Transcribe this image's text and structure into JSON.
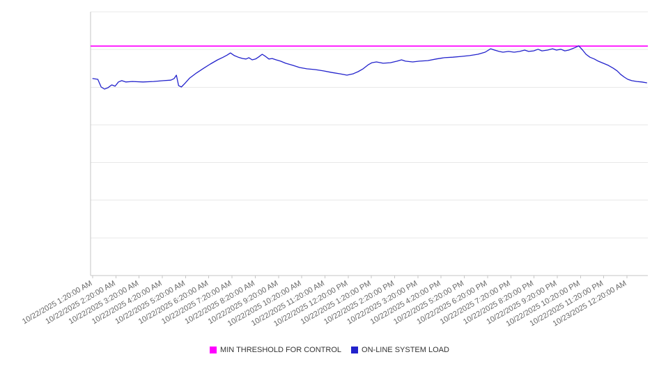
{
  "colors": {
    "threshold": "#ff00ff",
    "load_line": "#2222cc",
    "grid": "#e8e8e8",
    "axis": "#c6c6c6",
    "tick_label": "#666666",
    "legend_text": "#333333"
  },
  "chart_data": {
    "type": "line",
    "title": "",
    "xlabel": "",
    "ylabel": "",
    "grid": true,
    "legend_position": "bottom",
    "y_axis": {
      "labels_visible": false,
      "relative_scale": [
        0,
        100
      ],
      "gridline_divisions": 7
    },
    "x_tick_labels": [
      "10/22/2025 1:20:00 AM",
      "10/22/2025 2:20:00 AM",
      "10/22/2025 3:20:00 AM",
      "10/22/2025 4:20:00 AM",
      "10/22/2025 5:20:00 AM",
      "10/22/2025 6:20:00 AM",
      "10/22/2025 7:20:00 AM",
      "10/22/2025 8:20:00 AM",
      "10/22/2025 9:20:00 AM",
      "10/22/2025 10:20:00 AM",
      "10/22/2025 11:20:00 AM",
      "10/22/2025 12:20:00 PM",
      "10/22/2025 1:20:00 PM",
      "10/22/2025 2:20:00 PM",
      "10/22/2025 3:20:00 PM",
      "10/22/2025 4:20:00 PM",
      "10/22/2025 5:20:00 PM",
      "10/22/2025 6:20:00 PM",
      "10/22/2025 7:20:00 PM",
      "10/22/2025 8:20:00 PM",
      "10/22/2025 9:20:00 PM",
      "10/22/2025 10:20:00 PM",
      "10/22/2025 11:20:00 PM",
      "10/23/2025 12:20:00 AM"
    ],
    "series": [
      {
        "name": "MIN THRESHOLD FOR CONTROL",
        "type": "threshold",
        "color": "#ff00ff",
        "value": 87.0
      },
      {
        "name": "ON-LINE SYSTEM LOAD",
        "type": "line",
        "color": "#2222cc",
        "points": [
          [
            0.004,
            74.7
          ],
          [
            0.013,
            74.4
          ],
          [
            0.019,
            71.5
          ],
          [
            0.025,
            70.7
          ],
          [
            0.031,
            71.2
          ],
          [
            0.038,
            72.3
          ],
          [
            0.044,
            71.8
          ],
          [
            0.05,
            73.4
          ],
          [
            0.056,
            73.9
          ],
          [
            0.063,
            73.4
          ],
          [
            0.075,
            73.6
          ],
          [
            0.094,
            73.4
          ],
          [
            0.113,
            73.6
          ],
          [
            0.131,
            73.9
          ],
          [
            0.144,
            74.1
          ],
          [
            0.15,
            74.7
          ],
          [
            0.154,
            76.0
          ],
          [
            0.158,
            72.0
          ],
          [
            0.163,
            71.5
          ],
          [
            0.169,
            72.8
          ],
          [
            0.178,
            74.9
          ],
          [
            0.19,
            76.8
          ],
          [
            0.203,
            78.6
          ],
          [
            0.215,
            80.2
          ],
          [
            0.228,
            81.8
          ],
          [
            0.238,
            82.8
          ],
          [
            0.245,
            83.6
          ],
          [
            0.251,
            84.4
          ],
          [
            0.258,
            83.4
          ],
          [
            0.265,
            82.8
          ],
          [
            0.273,
            82.3
          ],
          [
            0.279,
            82.1
          ],
          [
            0.284,
            82.6
          ],
          [
            0.29,
            81.8
          ],
          [
            0.296,
            82.1
          ],
          [
            0.301,
            82.8
          ],
          [
            0.308,
            83.9
          ],
          [
            0.314,
            83.1
          ],
          [
            0.32,
            82.1
          ],
          [
            0.326,
            82.3
          ],
          [
            0.333,
            81.8
          ],
          [
            0.341,
            81.3
          ],
          [
            0.35,
            80.5
          ],
          [
            0.363,
            79.7
          ],
          [
            0.375,
            78.9
          ],
          [
            0.388,
            78.4
          ],
          [
            0.403,
            78.1
          ],
          [
            0.418,
            77.6
          ],
          [
            0.433,
            77.0
          ],
          [
            0.448,
            76.5
          ],
          [
            0.46,
            76.0
          ],
          [
            0.471,
            76.5
          ],
          [
            0.48,
            77.3
          ],
          [
            0.489,
            78.4
          ],
          [
            0.498,
            79.9
          ],
          [
            0.505,
            80.7
          ],
          [
            0.513,
            81.0
          ],
          [
            0.525,
            80.5
          ],
          [
            0.538,
            80.7
          ],
          [
            0.55,
            81.3
          ],
          [
            0.558,
            81.8
          ],
          [
            0.565,
            81.3
          ],
          [
            0.578,
            81.0
          ],
          [
            0.59,
            81.3
          ],
          [
            0.605,
            81.5
          ],
          [
            0.62,
            82.1
          ],
          [
            0.635,
            82.6
          ],
          [
            0.65,
            82.8
          ],
          [
            0.665,
            83.1
          ],
          [
            0.68,
            83.4
          ],
          [
            0.695,
            83.9
          ],
          [
            0.708,
            84.7
          ],
          [
            0.718,
            86.0
          ],
          [
            0.725,
            85.5
          ],
          [
            0.733,
            85.0
          ],
          [
            0.74,
            84.7
          ],
          [
            0.75,
            85.0
          ],
          [
            0.76,
            84.7
          ],
          [
            0.77,
            85.0
          ],
          [
            0.779,
            85.5
          ],
          [
            0.786,
            85.0
          ],
          [
            0.795,
            85.2
          ],
          [
            0.803,
            85.8
          ],
          [
            0.81,
            85.2
          ],
          [
            0.82,
            85.5
          ],
          [
            0.829,
            86.0
          ],
          [
            0.836,
            85.5
          ],
          [
            0.844,
            85.8
          ],
          [
            0.851,
            85.2
          ],
          [
            0.858,
            85.5
          ],
          [
            0.864,
            86.0
          ],
          [
            0.87,
            86.5
          ],
          [
            0.876,
            87.1
          ],
          [
            0.883,
            85.5
          ],
          [
            0.889,
            83.9
          ],
          [
            0.896,
            82.8
          ],
          [
            0.904,
            82.1
          ],
          [
            0.911,
            81.3
          ],
          [
            0.92,
            80.5
          ],
          [
            0.929,
            79.7
          ],
          [
            0.938,
            78.6
          ],
          [
            0.945,
            77.6
          ],
          [
            0.951,
            76.3
          ],
          [
            0.958,
            75.2
          ],
          [
            0.964,
            74.4
          ],
          [
            0.971,
            73.9
          ],
          [
            0.98,
            73.6
          ],
          [
            0.989,
            73.4
          ],
          [
            0.998,
            73.1
          ]
        ]
      }
    ]
  },
  "legend": {
    "items": [
      {
        "label": "MIN THRESHOLD FOR CONTROL",
        "color": "#ff00ff"
      },
      {
        "label": "ON-LINE SYSTEM LOAD",
        "color": "#2222cc"
      }
    ]
  }
}
